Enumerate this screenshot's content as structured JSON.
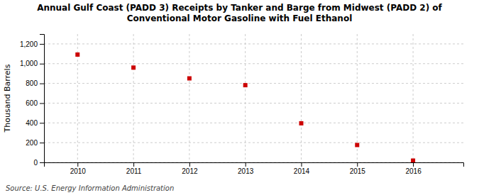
{
  "chart_data": {
    "type": "scatter",
    "title": "Annual Gulf Coast (PADD 3) Receipts by Tanker and Barge from Midwest (PADD 2) of\nConventional Motor Gasoline with Fuel Ethanol",
    "ylabel": "Thousand Barrels",
    "source": "Source: U.S. Energy Information Administration",
    "x": [
      2010,
      2011,
      2012,
      2013,
      2014,
      2015,
      2016
    ],
    "values": [
      1092,
      960,
      851,
      782,
      396,
      176,
      18
    ],
    "color": "#cc0000",
    "marker": "square",
    "xlim": [
      2009.4,
      2016.9
    ],
    "ylim": [
      0,
      1300
    ],
    "xticks": [
      2010,
      2011,
      2012,
      2013,
      2014,
      2015,
      2016
    ],
    "yticks": [
      0,
      200,
      400,
      600,
      800,
      {
        "value": 1000,
        "label": "1,000"
      },
      {
        "value": 1200,
        "label": "1,200"
      }
    ],
    "grid": true
  }
}
